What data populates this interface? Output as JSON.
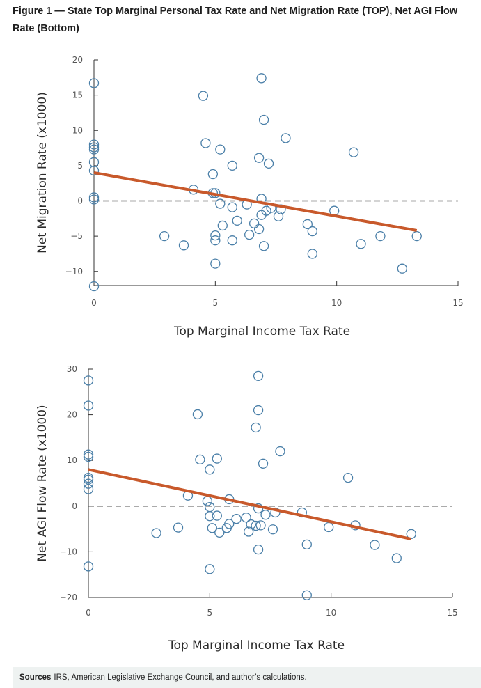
{
  "figure": {
    "title": "Figure 1 — State Top Marginal Personal Tax Rate and Net Migration Rate (TOP), Net AGI Flow Rate (Bottom)"
  },
  "sources": {
    "label": "Sources",
    "text": "IRS, American Legislative Exchange Council, and author’s calculations."
  },
  "colors": {
    "points": "#4a7fa8",
    "trend": "#c8592b",
    "zero_line": "#555555",
    "sources_bg": "#eef2f1"
  },
  "chart_data": [
    {
      "type": "scatter",
      "title": "",
      "xlabel": "Top Marginal Income Tax Rate",
      "ylabel": "Net Migration Rate (x1000)",
      "xlim": [
        0,
        15
      ],
      "ylim": [
        -12,
        20
      ],
      "xticks": [
        0,
        5,
        10,
        15
      ],
      "yticks": [
        20,
        15,
        10,
        5,
        0,
        -5,
        -10
      ],
      "zero_line": true,
      "trend": {
        "x": [
          0,
          13.3
        ],
        "y": [
          4.0,
          -4.2
        ]
      },
      "points": [
        {
          "x": 0,
          "y": 16.7
        },
        {
          "x": 0,
          "y": 8.0
        },
        {
          "x": 0,
          "y": 7.6
        },
        {
          "x": 0,
          "y": 7.3
        },
        {
          "x": 0,
          "y": 5.5
        },
        {
          "x": 0,
          "y": 4.3
        },
        {
          "x": 0,
          "y": 0.5
        },
        {
          "x": 0,
          "y": 0.2
        },
        {
          "x": 0,
          "y": -12.1
        },
        {
          "x": 2.9,
          "y": -5.0
        },
        {
          "x": 3.7,
          "y": -6.3
        },
        {
          "x": 4.1,
          "y": 1.6
        },
        {
          "x": 4.5,
          "y": 14.9
        },
        {
          "x": 4.6,
          "y": 8.2
        },
        {
          "x": 4.9,
          "y": 3.8
        },
        {
          "x": 4.9,
          "y": 1.1
        },
        {
          "x": 5.0,
          "y": 1.1
        },
        {
          "x": 5.0,
          "y": -4.9
        },
        {
          "x": 5.0,
          "y": -5.6
        },
        {
          "x": 5.0,
          "y": -8.9
        },
        {
          "x": 5.2,
          "y": 7.3
        },
        {
          "x": 5.2,
          "y": -0.4
        },
        {
          "x": 5.3,
          "y": -3.5
        },
        {
          "x": 5.7,
          "y": 5.0
        },
        {
          "x": 5.7,
          "y": -0.9
        },
        {
          "x": 5.7,
          "y": -5.6
        },
        {
          "x": 5.9,
          "y": -2.8
        },
        {
          "x": 6.3,
          "y": -0.5
        },
        {
          "x": 6.4,
          "y": -4.8
        },
        {
          "x": 6.6,
          "y": -3.2
        },
        {
          "x": 6.8,
          "y": -4.0
        },
        {
          "x": 6.8,
          "y": 6.1
        },
        {
          "x": 6.9,
          "y": 17.4
        },
        {
          "x": 6.9,
          "y": 0.3
        },
        {
          "x": 6.9,
          "y": -2.0
        },
        {
          "x": 7.0,
          "y": 11.5
        },
        {
          "x": 7.0,
          "y": -6.4
        },
        {
          "x": 7.1,
          "y": -1.4
        },
        {
          "x": 7.2,
          "y": 5.3
        },
        {
          "x": 7.3,
          "y": -1.0
        },
        {
          "x": 7.6,
          "y": -2.2
        },
        {
          "x": 7.7,
          "y": -1.2
        },
        {
          "x": 7.9,
          "y": 8.9
        },
        {
          "x": 8.8,
          "y": -3.3
        },
        {
          "x": 9.0,
          "y": -4.3
        },
        {
          "x": 9.0,
          "y": -7.5
        },
        {
          "x": 9.9,
          "y": -1.4
        },
        {
          "x": 10.7,
          "y": 6.9
        },
        {
          "x": 11.0,
          "y": -6.1
        },
        {
          "x": 11.8,
          "y": -5.0
        },
        {
          "x": 12.7,
          "y": -9.6
        },
        {
          "x": 13.3,
          "y": -5.0
        }
      ]
    },
    {
      "type": "scatter",
      "title": "",
      "xlabel": "Top Marginal Income Tax Rate",
      "ylabel": "Net AGI Flow Rate (x1000)",
      "xlim": [
        0,
        15
      ],
      "ylim": [
        -20,
        30
      ],
      "xticks": [
        0,
        5,
        10,
        15
      ],
      "yticks": [
        30,
        20,
        10,
        0,
        -10,
        -20
      ],
      "zero_line": true,
      "trend": {
        "x": [
          0,
          13.3
        ],
        "y": [
          8.0,
          -7.2
        ]
      },
      "points": [
        {
          "x": 0,
          "y": 27.5
        },
        {
          "x": 0,
          "y": 22.0
        },
        {
          "x": 0,
          "y": 11.3
        },
        {
          "x": 0,
          "y": 10.8
        },
        {
          "x": 0,
          "y": 6.2
        },
        {
          "x": 0,
          "y": 5.8
        },
        {
          "x": 0,
          "y": 4.9
        },
        {
          "x": 0,
          "y": 3.7
        },
        {
          "x": 0,
          "y": -13.2
        },
        {
          "x": 2.8,
          "y": -5.9
        },
        {
          "x": 3.7,
          "y": -4.7
        },
        {
          "x": 4.1,
          "y": 2.3
        },
        {
          "x": 4.5,
          "y": 20.1
        },
        {
          "x": 4.6,
          "y": 10.2
        },
        {
          "x": 4.9,
          "y": 1.1
        },
        {
          "x": 5.0,
          "y": 8.0
        },
        {
          "x": 5.0,
          "y": -0.2
        },
        {
          "x": 5.0,
          "y": -2.2
        },
        {
          "x": 5.1,
          "y": -4.8
        },
        {
          "x": 5.0,
          "y": -13.8
        },
        {
          "x": 5.3,
          "y": 10.4
        },
        {
          "x": 5.3,
          "y": -2.1
        },
        {
          "x": 5.4,
          "y": -5.8
        },
        {
          "x": 5.8,
          "y": 1.5
        },
        {
          "x": 5.8,
          "y": -3.9
        },
        {
          "x": 5.7,
          "y": -4.8
        },
        {
          "x": 6.1,
          "y": -2.8
        },
        {
          "x": 6.5,
          "y": -2.5
        },
        {
          "x": 6.6,
          "y": -5.6
        },
        {
          "x": 6.7,
          "y": -4.0
        },
        {
          "x": 6.9,
          "y": -4.3
        },
        {
          "x": 6.9,
          "y": 17.2
        },
        {
          "x": 7.0,
          "y": 28.5
        },
        {
          "x": 7.0,
          "y": -0.5
        },
        {
          "x": 7.1,
          "y": -4.2
        },
        {
          "x": 7.0,
          "y": 21.0
        },
        {
          "x": 7.0,
          "y": -9.5
        },
        {
          "x": 7.3,
          "y": -1.9
        },
        {
          "x": 7.2,
          "y": 9.3
        },
        {
          "x": 7.6,
          "y": -5.1
        },
        {
          "x": 7.7,
          "y": -1.4
        },
        {
          "x": 7.9,
          "y": 12.0
        },
        {
          "x": 8.8,
          "y": -1.4
        },
        {
          "x": 9.0,
          "y": -8.4
        },
        {
          "x": 9.0,
          "y": -19.5
        },
        {
          "x": 9.9,
          "y": -4.6
        },
        {
          "x": 10.7,
          "y": 6.2
        },
        {
          "x": 11.0,
          "y": -4.2
        },
        {
          "x": 11.8,
          "y": -8.5
        },
        {
          "x": 12.7,
          "y": -11.4
        },
        {
          "x": 13.3,
          "y": -6.1
        }
      ]
    }
  ]
}
